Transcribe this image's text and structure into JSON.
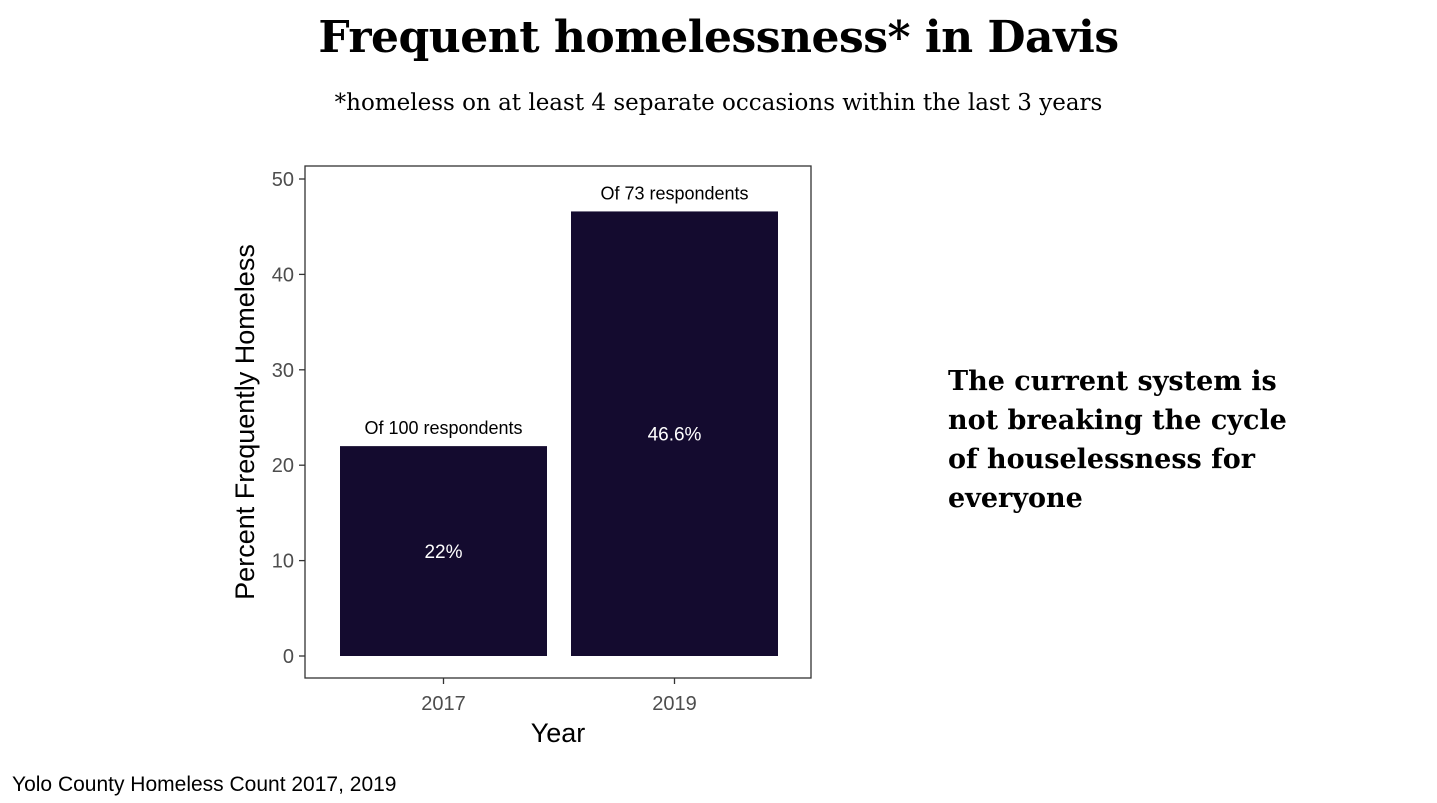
{
  "header": {
    "title": "Frequent homelessness* in Davis",
    "subtitle": "*homeless on at least 4 separate occasions within the last 3 years"
  },
  "note": {
    "lines": [
      "The current system is",
      "not breaking the cycle",
      "of houselessness for",
      "everyone"
    ]
  },
  "caption": "Yolo County Homeless Count 2017, 2019",
  "colors": {
    "bar": "#140b2f",
    "axis": "#333333",
    "tick_text": "#4d4d4d"
  },
  "chart_data": {
    "type": "bar",
    "title": "Frequent homelessness* in Davis",
    "xlabel": "Year",
    "ylabel": "Percent Frequently Homeless",
    "categories": [
      "2017",
      "2019"
    ],
    "values": [
      22,
      46.6
    ],
    "value_labels": [
      "22%",
      "46.6%"
    ],
    "annotations": [
      "Of 100 respondents",
      "Of 73 respondents"
    ],
    "yticks": [
      0,
      10,
      20,
      30,
      40,
      50
    ],
    "ytick_labels": [
      "0",
      "10",
      "20",
      "30",
      "40",
      "50"
    ],
    "ylim": [
      -2.3,
      51.3
    ],
    "grid": false,
    "legend": "none"
  }
}
